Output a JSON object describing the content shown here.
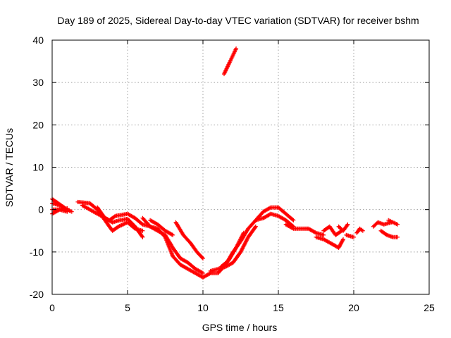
{
  "chart_data": {
    "type": "scatter",
    "title": "Day 189 of 2025, Sidereal Day-to-day VTEC variation (SDTVAR) for receiver bshm",
    "xlabel": "GPS time / hours",
    "ylabel": "SDTVAR / TECUs",
    "xlim": [
      0,
      25
    ],
    "ylim": [
      -20,
      40
    ],
    "xticks": [
      "0",
      "5",
      "10",
      "15",
      "20",
      "25"
    ],
    "yticks": [
      "-20",
      "-10",
      "0",
      "10",
      "20",
      "30",
      "40"
    ],
    "grid": true,
    "marker": "+",
    "series": [
      {
        "name": "SDTVAR",
        "color": "#ff0000",
        "tracks": [
          [
            [
              0,
              1.5
            ],
            [
              0.5,
              1
            ],
            [
              1,
              0
            ],
            [
              1.3,
              -0.5
            ]
          ],
          [
            [
              0,
              -1
            ],
            [
              0.5,
              0
            ],
            [
              1,
              0.3
            ]
          ],
          [
            [
              0,
              2.5
            ],
            [
              0.4,
              1.5
            ],
            [
              0.8,
              0.5
            ]
          ],
          [
            [
              1.7,
              1.8
            ],
            [
              2.5,
              1.5
            ],
            [
              3,
              0
            ],
            [
              3.5,
              -2.5
            ],
            [
              4,
              -5
            ],
            [
              4.4,
              -4
            ],
            [
              5,
              -3
            ],
            [
              5.5,
              -4.5
            ],
            [
              6,
              -5
            ]
          ],
          [
            [
              2,
              1
            ],
            [
              3,
              -1
            ],
            [
              3.8,
              -2.5
            ],
            [
              4.2,
              -1.5
            ],
            [
              5,
              -1
            ],
            [
              5.5,
              -2
            ],
            [
              6,
              -3.5
            ],
            [
              7,
              -4.5
            ],
            [
              7.5,
              -6.5
            ],
            [
              8,
              -11
            ],
            [
              8.5,
              -13
            ],
            [
              9,
              -14
            ],
            [
              9.5,
              -15
            ],
            [
              10,
              -16
            ]
          ],
          [
            [
              3,
              0.5
            ],
            [
              3.5,
              -2
            ],
            [
              4,
              -3
            ],
            [
              4.5,
              -2.5
            ],
            [
              5,
              -2.2
            ],
            [
              5.5,
              -4
            ],
            [
              6,
              -6.5
            ]
          ],
          [
            [
              6,
              -2
            ],
            [
              6.5,
              -4
            ],
            [
              7,
              -5
            ],
            [
              7.5,
              -6
            ],
            [
              8,
              -9
            ],
            [
              8.5,
              -11.5
            ],
            [
              9,
              -12.5
            ],
            [
              9.5,
              -14
            ],
            [
              10,
              -15
            ]
          ],
          [
            [
              6.5,
              -2.5
            ],
            [
              7,
              -3.5
            ],
            [
              7.5,
              -5
            ],
            [
              8,
              -6
            ]
          ],
          [
            [
              8.2,
              -3
            ],
            [
              8.7,
              -6
            ],
            [
              9.2,
              -8
            ],
            [
              9.6,
              -10
            ],
            [
              10,
              -11.5
            ]
          ],
          [
            [
              10,
              -16
            ],
            [
              10.5,
              -15
            ],
            [
              11,
              -15
            ],
            [
              11.5,
              -13
            ],
            [
              12,
              -10
            ],
            [
              12.5,
              -7.5
            ],
            [
              13,
              -4.5
            ],
            [
              13.5,
              -2.5
            ],
            [
              14,
              -0.5
            ],
            [
              14.5,
              0.5
            ],
            [
              15,
              0.5
            ],
            [
              15.5,
              -1
            ],
            [
              16,
              -2.5
            ]
          ],
          [
            [
              10.5,
              -14.5
            ],
            [
              11,
              -14
            ],
            [
              11.5,
              -13.5
            ],
            [
              12,
              -12.5
            ],
            [
              12.5,
              -10
            ],
            [
              13,
              -6.5
            ],
            [
              13.5,
              -4
            ]
          ],
          [
            [
              11.2,
              -13.5
            ],
            [
              11.7,
              -12
            ],
            [
              12.2,
              -9
            ],
            [
              12.7,
              -5.5
            ]
          ],
          [
            [
              11.4,
              32
            ],
            [
              11.8,
              35
            ],
            [
              12.2,
              38
            ]
          ],
          [
            [
              13.5,
              -2.5
            ],
            [
              14,
              -2
            ],
            [
              14.5,
              -1
            ],
            [
              15,
              -1.5
            ],
            [
              15.5,
              -2.5
            ],
            [
              16,
              -4
            ]
          ],
          [
            [
              15.5,
              -3.5
            ],
            [
              16,
              -4.5
            ],
            [
              16.5,
              -4.5
            ],
            [
              17,
              -4.5
            ],
            [
              17.5,
              -5.5
            ],
            [
              18,
              -6
            ]
          ],
          [
            [
              17.5,
              -6.5
            ],
            [
              18,
              -7
            ],
            [
              18.5,
              -8
            ],
            [
              19,
              -9
            ],
            [
              19.3,
              -7
            ]
          ],
          [
            [
              18,
              -5
            ],
            [
              18.4,
              -4
            ],
            [
              18.8,
              -6
            ],
            [
              19.2,
              -5
            ]
          ],
          [
            [
              19,
              -4
            ],
            [
              19.3,
              -5
            ],
            [
              19.6,
              -3.5
            ]
          ],
          [
            [
              19.5,
              -6
            ],
            [
              20,
              -6.5
            ]
          ],
          [
            [
              20.2,
              -5.5
            ],
            [
              20.4,
              -4.5
            ],
            [
              20.6,
              -5
            ]
          ],
          [
            [
              21.3,
              -4
            ],
            [
              21.6,
              -3
            ],
            [
              22,
              -3.5
            ],
            [
              22.5,
              -3
            ]
          ],
          [
            [
              21.8,
              -5
            ],
            [
              22.2,
              -6
            ],
            [
              22.6,
              -6.5
            ],
            [
              22.9,
              -6.5
            ]
          ],
          [
            [
              22.3,
              -2.5
            ],
            [
              22.6,
              -3
            ],
            [
              22.9,
              -3.5
            ]
          ],
          [
            [
              0,
              0
            ],
            [
              0.5,
              0
            ],
            [
              1,
              -0.5
            ]
          ]
        ]
      }
    ]
  }
}
